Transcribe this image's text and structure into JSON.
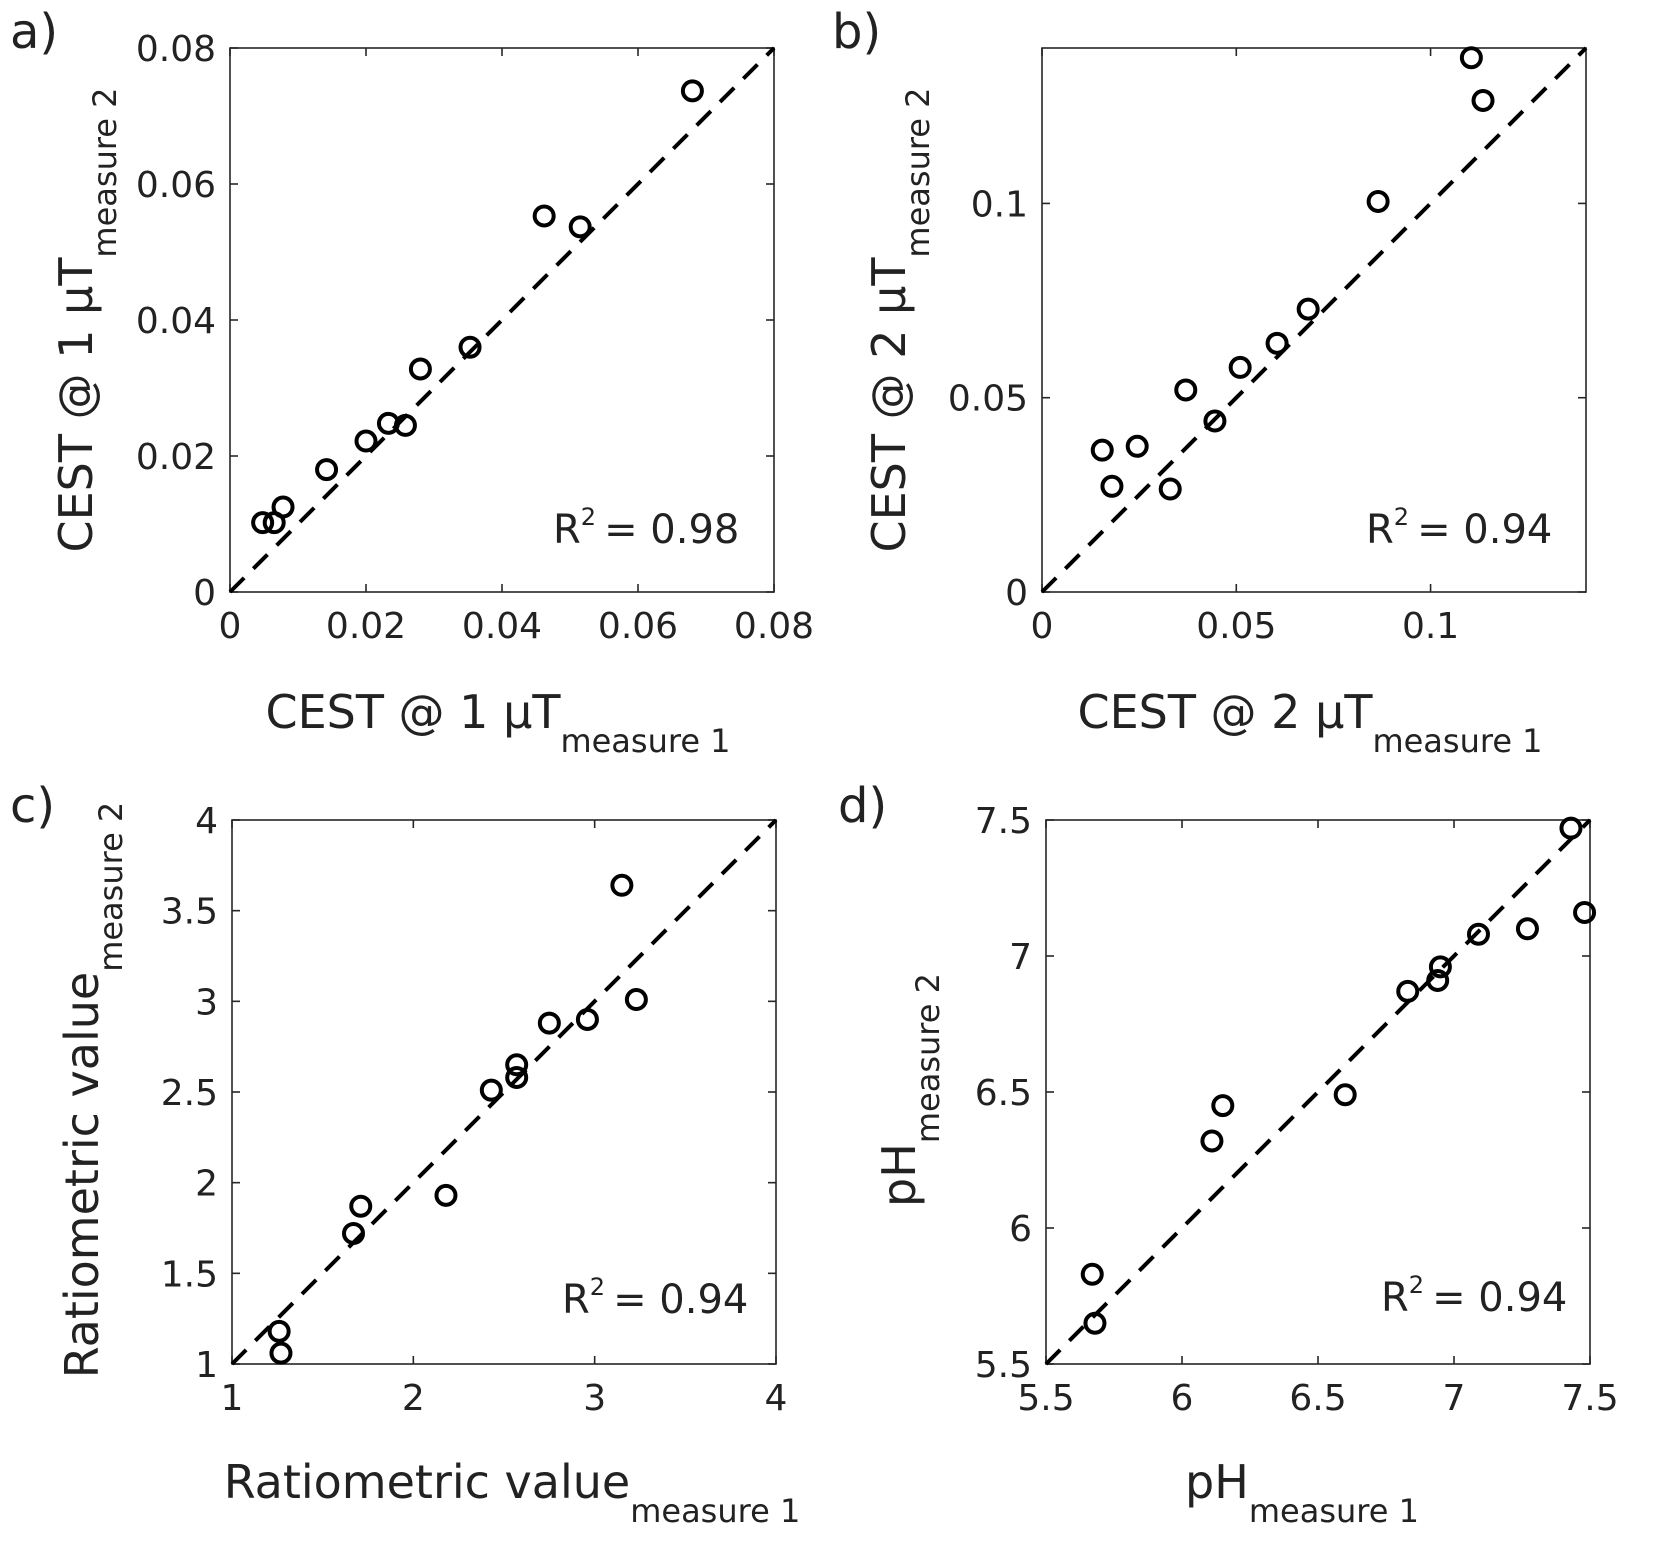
{
  "chart_data": [
    {
      "type": "scatter",
      "panel_label": "a)",
      "xlabel": {
        "main": "CEST @ 1 μT",
        "sub": "measure 1"
      },
      "ylabel": {
        "main": "CEST @ 1 μT",
        "sub": "measure 2"
      },
      "xlim": [
        0,
        0.08
      ],
      "ylim": [
        0,
        0.08
      ],
      "xticks": [
        0,
        0.02,
        0.04,
        0.06,
        0.08
      ],
      "xtick_labels": [
        "0",
        "0.02",
        "0.04",
        "0.06",
        "0.08"
      ],
      "yticks": [
        0,
        0.02,
        0.04,
        0.06,
        0.08
      ],
      "ytick_labels": [
        "0",
        "0.02",
        "0.04",
        "0.06",
        "0.08"
      ],
      "r2_label": "R",
      "r2_sup": "2",
      "r2_value": "=  0.98",
      "reference_line": "identity (dashed)",
      "points": {
        "x": [
          0.0048,
          0.0065,
          0.0078,
          0.0142,
          0.02,
          0.0233,
          0.0258,
          0.028,
          0.0353,
          0.0462,
          0.0515,
          0.068
        ],
        "y": [
          0.0102,
          0.0102,
          0.0125,
          0.018,
          0.0222,
          0.0248,
          0.0245,
          0.0328,
          0.036,
          0.0553,
          0.0537,
          0.0737
        ]
      }
    },
    {
      "type": "scatter",
      "panel_label": "b)",
      "xlabel": {
        "main": "CEST @ 2 μT",
        "sub": "measure 1"
      },
      "ylabel": {
        "main": "CEST @ 2 μT",
        "sub": "measure 2"
      },
      "xlim": [
        0,
        0.14
      ],
      "ylim": [
        0,
        0.14
      ],
      "xticks": [
        0,
        0.05,
        0.1
      ],
      "xtick_labels": [
        "0",
        "0.05",
        "0.1"
      ],
      "yticks": [
        0,
        0.05,
        0.1
      ],
      "ytick_labels": [
        "0",
        "0.05",
        "0.1"
      ],
      "r2_label": "R",
      "r2_sup": "2",
      "r2_value": "=  0.94",
      "reference_line": "identity (dashed)",
      "points": {
        "x": [
          0.0155,
          0.018,
          0.0245,
          0.033,
          0.037,
          0.0445,
          0.051,
          0.0605,
          0.0685,
          0.0865,
          0.1105,
          0.1135
        ],
        "y": [
          0.0365,
          0.0272,
          0.0375,
          0.0265,
          0.052,
          0.044,
          0.0578,
          0.064,
          0.0728,
          0.1005,
          0.1375,
          0.1265
        ]
      }
    },
    {
      "type": "scatter",
      "panel_label": "c)",
      "xlabel": {
        "main": "Ratiometric value",
        "sub": "measure 1"
      },
      "ylabel": {
        "main": "Ratiometric value",
        "sub": "measure 2"
      },
      "xlim": [
        1,
        4
      ],
      "ylim": [
        1,
        4
      ],
      "xticks": [
        1,
        2,
        3,
        4
      ],
      "xtick_labels": [
        "1",
        "2",
        "3",
        "4"
      ],
      "yticks": [
        1,
        1.5,
        2,
        2.5,
        3,
        3.5,
        4
      ],
      "ytick_labels": [
        "1",
        "1.5",
        "2",
        "2.5",
        "3",
        "3.5",
        "4"
      ],
      "r2_label": "R",
      "r2_sup": "2",
      "r2_value": "=  0.94",
      "reference_line": "identity (dashed)",
      "points": {
        "x": [
          1.26,
          1.27,
          1.67,
          1.71,
          2.18,
          2.43,
          2.57,
          2.57,
          2.75,
          2.96,
          3.15,
          3.23
        ],
        "y": [
          1.18,
          1.06,
          1.72,
          1.87,
          1.93,
          2.51,
          2.58,
          2.65,
          2.88,
          2.9,
          3.64,
          3.01
        ]
      }
    },
    {
      "type": "scatter",
      "panel_label": "d)",
      "xlabel": {
        "main": "pH",
        "sub": "measure 1"
      },
      "ylabel": {
        "main": "pH",
        "sub": "measure 2"
      },
      "xlim": [
        5.5,
        7.5
      ],
      "ylim": [
        5.5,
        7.5
      ],
      "xticks": [
        5.5,
        6,
        6.5,
        7,
        7.5
      ],
      "xtick_labels": [
        "5.5",
        "6",
        "6.5",
        "7",
        "7.5"
      ],
      "yticks": [
        5.5,
        6,
        6.5,
        7,
        7.5
      ],
      "ytick_labels": [
        "5.5",
        "6",
        "6.5",
        "7",
        "7.5"
      ],
      "r2_label": "R",
      "r2_sup": "2",
      "r2_value": "=  0.94",
      "reference_line": "identity (dashed)",
      "points": {
        "x": [
          5.67,
          5.68,
          6.11,
          6.15,
          6.6,
          6.83,
          6.94,
          6.95,
          7.09,
          7.27,
          7.43,
          7.48
        ],
        "y": [
          5.83,
          5.65,
          6.32,
          6.45,
          6.49,
          6.87,
          6.91,
          6.96,
          7.08,
          7.1,
          7.47,
          7.16
        ]
      }
    }
  ]
}
